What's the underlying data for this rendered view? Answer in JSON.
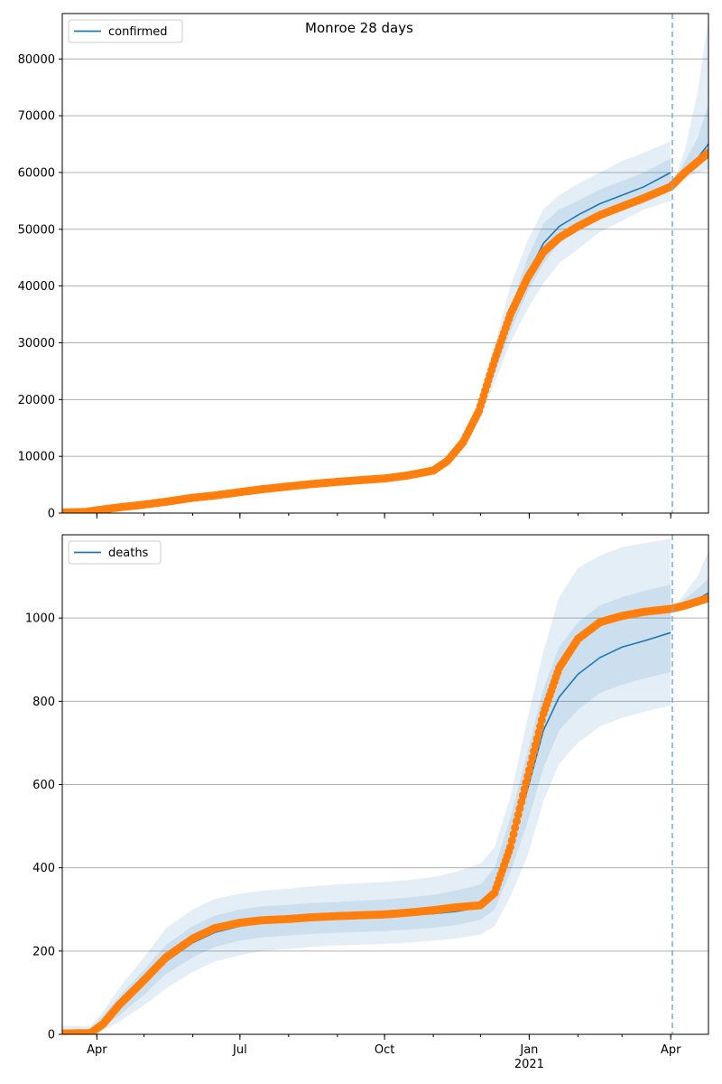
{
  "figure": {
    "title": "Monroe 28 days"
  },
  "colors": {
    "model": "#1f77b4",
    "observed": "#ff7f0e",
    "band": "#1f77b4",
    "grid": "#b0b0b0",
    "cutoff": "#7fb0d3"
  },
  "x_axis": {
    "start": "2020-03-10",
    "end": "2021-04-25",
    "ticks": [
      {
        "date": "2020-04-01",
        "label": "Apr"
      },
      {
        "date": "2020-07-01",
        "label": "Jul"
      },
      {
        "date": "2020-10-01",
        "label": "Oct"
      },
      {
        "date": "2021-01-01",
        "label": "Jan"
      },
      {
        "date": "2021-04-01",
        "label": "Apr"
      }
    ],
    "year_label": "2021",
    "year_label_date": "2021-01-01",
    "cutoff_date": "2021-04-02"
  },
  "chart_data": [
    {
      "type": "line",
      "panel": "top",
      "title": "Monroe 28 days",
      "legend": "confirmed",
      "legend_position": "top-left",
      "grid": "y",
      "ylim": [
        0,
        88000
      ],
      "yticks": [
        0,
        10000,
        20000,
        30000,
        40000,
        50000,
        60000,
        70000,
        80000
      ],
      "observed": {
        "dates": [
          "2020-03-10",
          "2020-03-25",
          "2020-04-01",
          "2020-04-15",
          "2020-05-01",
          "2020-05-15",
          "2020-06-01",
          "2020-06-15",
          "2020-07-01",
          "2020-07-15",
          "2020-08-01",
          "2020-08-15",
          "2020-09-01",
          "2020-09-15",
          "2020-10-01",
          "2020-10-15",
          "2020-11-01",
          "2020-11-10",
          "2020-11-20",
          "2020-11-30",
          "2020-12-10",
          "2020-12-20",
          "2020-12-31",
          "2021-01-10",
          "2021-01-20",
          "2021-02-01",
          "2021-02-15",
          "2021-03-01",
          "2021-03-15",
          "2021-04-01",
          "2021-04-10",
          "2021-04-25"
        ],
        "values": [
          100,
          200,
          500,
          1000,
          1500,
          2000,
          2700,
          3100,
          3700,
          4200,
          4700,
          5100,
          5500,
          5800,
          6100,
          6600,
          7500,
          9200,
          12500,
          18000,
          27000,
          35000,
          41500,
          46000,
          48500,
          50500,
          52500,
          54000,
          55500,
          57500,
          60000,
          63500
        ]
      },
      "model": {
        "dates": [
          "2020-11-20",
          "2020-11-30",
          "2020-12-10",
          "2020-12-20",
          "2020-12-31",
          "2021-01-10",
          "2021-01-20",
          "2021-02-01",
          "2021-02-15",
          "2021-03-01",
          "2021-03-15",
          "2021-04-01"
        ],
        "values": [
          12500,
          17500,
          26000,
          34000,
          42000,
          47500,
          50500,
          52500,
          54500,
          56000,
          57500,
          60000
        ]
      },
      "model_future": {
        "dates": [
          "2021-04-02",
          "2021-04-10",
          "2021-04-18",
          "2021-04-25"
        ],
        "values": [
          57500,
          60000,
          62500,
          65000
        ]
      },
      "bands": [
        {
          "dates": [
            "2020-11-20",
            "2020-11-30",
            "2020-12-10",
            "2020-12-20",
            "2020-12-31",
            "2021-01-10",
            "2021-01-20",
            "2021-02-01",
            "2021-02-15",
            "2021-03-01",
            "2021-03-15",
            "2021-04-01"
          ],
          "lower": [
            11500,
            16000,
            23000,
            30000,
            36000,
            40500,
            44000,
            46500,
            49500,
            51500,
            53500,
            55000
          ],
          "upper": [
            13500,
            19000,
            29500,
            40000,
            48000,
            53500,
            56000,
            58000,
            60000,
            62000,
            63500,
            65500
          ]
        },
        {
          "dates": [
            "2020-11-20",
            "2020-11-30",
            "2020-12-10",
            "2020-12-20",
            "2020-12-31",
            "2021-01-10",
            "2021-01-20",
            "2021-02-01",
            "2021-02-15",
            "2021-03-01",
            "2021-03-15",
            "2021-04-01"
          ],
          "lower": [
            12000,
            16800,
            24500,
            32000,
            39000,
            44000,
            47500,
            50000,
            52000,
            54000,
            55500,
            57000
          ],
          "upper": [
            13000,
            18300,
            27500,
            36000,
            45000,
            51000,
            53500,
            55000,
            57000,
            58500,
            60000,
            62500
          ]
        }
      ],
      "bands_future": [
        {
          "dates": [
            "2021-04-02",
            "2021-04-10",
            "2021-04-18",
            "2021-04-25"
          ],
          "lower": [
            57500,
            59000,
            60000,
            60500
          ],
          "upper": [
            57500,
            64000,
            74000,
            87000
          ]
        },
        {
          "dates": [
            "2021-04-02",
            "2021-04-10",
            "2021-04-18",
            "2021-04-25"
          ],
          "lower": [
            57500,
            59500,
            61000,
            62500
          ],
          "upper": [
            57500,
            62000,
            66000,
            72000
          ]
        }
      ]
    },
    {
      "type": "line",
      "panel": "bottom",
      "legend": "deaths",
      "legend_position": "top-left",
      "grid": "y",
      "ylim": [
        0,
        1200
      ],
      "yticks": [
        0,
        200,
        400,
        600,
        800,
        1000
      ],
      "observed": {
        "dates": [
          "2020-03-10",
          "2020-03-28",
          "2020-04-05",
          "2020-04-15",
          "2020-05-01",
          "2020-05-15",
          "2020-06-01",
          "2020-06-15",
          "2020-07-01",
          "2020-07-15",
          "2020-08-01",
          "2020-08-15",
          "2020-09-01",
          "2020-09-15",
          "2020-10-01",
          "2020-10-15",
          "2020-11-01",
          "2020-11-15",
          "2020-12-01",
          "2020-12-10",
          "2020-12-20",
          "2020-12-31",
          "2021-01-10",
          "2021-01-20",
          "2021-02-01",
          "2021-02-15",
          "2021-03-01",
          "2021-03-15",
          "2021-04-01",
          "2021-04-10",
          "2021-04-25"
        ],
        "values": [
          2,
          3,
          25,
          70,
          130,
          185,
          230,
          255,
          268,
          274,
          277,
          281,
          284,
          286,
          288,
          292,
          298,
          305,
          310,
          340,
          450,
          620,
          770,
          880,
          950,
          990,
          1005,
          1015,
          1022,
          1030,
          1048
        ]
      },
      "model": {
        "dates": [
          "2020-03-10",
          "2020-03-28",
          "2020-04-05",
          "2020-04-15",
          "2020-05-01",
          "2020-05-15",
          "2020-06-01",
          "2020-06-15",
          "2020-07-01",
          "2020-07-15",
          "2020-08-01",
          "2020-08-15",
          "2020-09-01",
          "2020-09-15",
          "2020-10-01",
          "2020-10-15",
          "2020-11-01",
          "2020-11-15",
          "2020-12-01",
          "2020-12-10",
          "2020-12-20",
          "2020-12-31",
          "2021-01-10",
          "2021-01-20",
          "2021-02-01",
          "2021-02-15",
          "2021-03-01",
          "2021-03-15",
          "2021-04-01"
        ],
        "values": [
          2,
          5,
          30,
          65,
          120,
          175,
          220,
          245,
          260,
          268,
          272,
          276,
          279,
          281,
          283,
          286,
          290,
          295,
          305,
          340,
          450,
          590,
          730,
          810,
          865,
          905,
          930,
          945,
          965
        ]
      },
      "model_future": {
        "dates": [
          "2021-04-02",
          "2021-04-10",
          "2021-04-18",
          "2021-04-25"
        ],
        "values": [
          1020,
          1030,
          1045,
          1060
        ]
      },
      "bands": [
        {
          "dates": [
            "2020-03-10",
            "2020-03-28",
            "2020-04-05",
            "2020-04-15",
            "2020-05-01",
            "2020-05-15",
            "2020-06-01",
            "2020-06-15",
            "2020-07-01",
            "2020-07-15",
            "2020-08-01",
            "2020-08-15",
            "2020-09-01",
            "2020-09-15",
            "2020-10-01",
            "2020-10-15",
            "2020-11-01",
            "2020-11-15",
            "2020-12-01",
            "2020-12-10",
            "2020-12-20",
            "2020-12-31",
            "2021-01-10",
            "2021-01-20",
            "2021-02-01",
            "2021-02-15",
            "2021-03-01",
            "2021-03-15",
            "2021-04-01"
          ],
          "lower": [
            0,
            0,
            10,
            30,
            70,
            110,
            150,
            175,
            190,
            200,
            205,
            210,
            213,
            215,
            217,
            220,
            225,
            230,
            240,
            260,
            330,
            430,
            560,
            650,
            700,
            740,
            760,
            775,
            790
          ],
          "upper": [
            20,
            20,
            55,
            110,
            185,
            255,
            300,
            325,
            338,
            345,
            350,
            355,
            360,
            363,
            366,
            370,
            378,
            390,
            410,
            450,
            570,
            760,
            920,
            1050,
            1120,
            1150,
            1170,
            1180,
            1190
          ]
        },
        {
          "dates": [
            "2020-03-10",
            "2020-03-28",
            "2020-04-05",
            "2020-04-15",
            "2020-05-01",
            "2020-05-15",
            "2020-06-01",
            "2020-06-15",
            "2020-07-01",
            "2020-07-15",
            "2020-08-01",
            "2020-08-15",
            "2020-09-01",
            "2020-09-15",
            "2020-10-01",
            "2020-10-15",
            "2020-11-01",
            "2020-11-15",
            "2020-12-01",
            "2020-12-10",
            "2020-12-20",
            "2020-12-31",
            "2021-01-10",
            "2021-01-20",
            "2021-02-01",
            "2021-02-15",
            "2021-03-01",
            "2021-03-15",
            "2021-04-01"
          ],
          "lower": [
            0,
            2,
            18,
            45,
            95,
            145,
            185,
            210,
            225,
            233,
            237,
            241,
            244,
            246,
            248,
            251,
            256,
            262,
            275,
            300,
            390,
            510,
            640,
            730,
            780,
            820,
            840,
            855,
            870
          ],
          "upper": [
            10,
            12,
            45,
            90,
            155,
            215,
            260,
            285,
            300,
            307,
            311,
            315,
            318,
            321,
            324,
            328,
            335,
            345,
            360,
            400,
            520,
            680,
            830,
            930,
            990,
            1030,
            1050,
            1065,
            1080
          ]
        }
      ],
      "bands_future": [
        {
          "dates": [
            "2021-04-02",
            "2021-04-10",
            "2021-04-18",
            "2021-04-25"
          ],
          "lower": [
            1020,
            1025,
            1030,
            1040
          ],
          "upper": [
            1020,
            1060,
            1100,
            1160
          ]
        },
        {
          "dates": [
            "2021-04-02",
            "2021-04-10",
            "2021-04-18",
            "2021-04-25"
          ],
          "lower": [
            1020,
            1028,
            1038,
            1050
          ],
          "upper": [
            1020,
            1045,
            1070,
            1095
          ]
        }
      ]
    }
  ]
}
